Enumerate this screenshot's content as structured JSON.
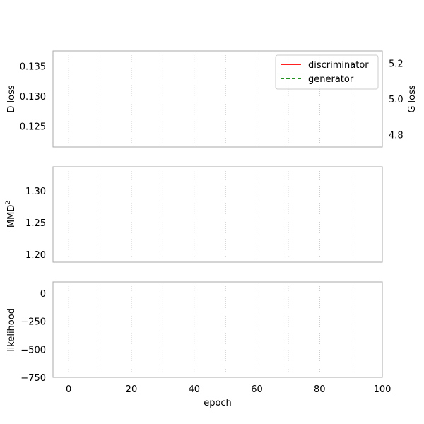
{
  "chart_data": [
    {
      "type": "line",
      "xlim": [
        -5,
        100
      ],
      "ylabel": "D loss",
      "ylim": [
        0.1215,
        0.1375
      ],
      "yticks": [
        "0.125",
        "0.130",
        "0.135"
      ],
      "secondary_ylabel": "G loss",
      "secondary_ylim": [
        4.73,
        5.27
      ],
      "secondary_yticks": [
        "4.8",
        "5.0",
        "5.2"
      ],
      "grid": "vertical-dotted",
      "legend_position": "top-right",
      "series": [
        {
          "name": "discriminator",
          "axis": "left",
          "color": "#ff0000",
          "style": "solid",
          "x": [],
          "y": []
        },
        {
          "name": "generator",
          "axis": "right",
          "color": "#008000",
          "style": "dashed",
          "x": [],
          "y": []
        }
      ]
    },
    {
      "type": "line",
      "xlim": [
        -5,
        100
      ],
      "ylabel_main": "MMD",
      "ylabel_sup": "2",
      "ylim": [
        1.188,
        1.338
      ],
      "yticks": [
        "1.20",
        "1.25",
        "1.30"
      ],
      "grid": "vertical-dotted",
      "series": []
    },
    {
      "type": "line",
      "xlim": [
        -5,
        100
      ],
      "xlabel": "epoch",
      "xticks": [
        "0",
        "20",
        "40",
        "60",
        "80",
        "100"
      ],
      "ylabel": "likelihood",
      "ylim": [
        -750,
        100
      ],
      "yticks": [
        "0",
        "−250",
        "−500",
        "−750"
      ],
      "grid": "vertical-dotted",
      "series": []
    }
  ]
}
